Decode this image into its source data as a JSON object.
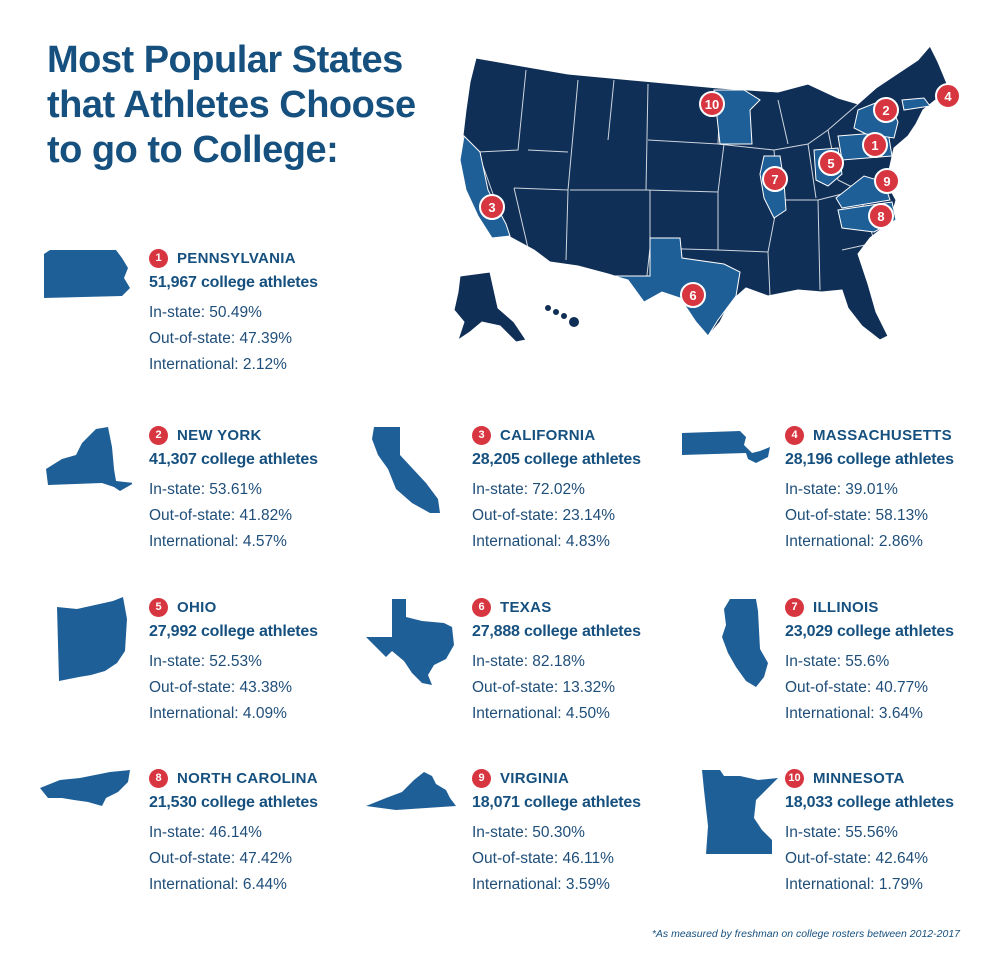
{
  "title": "Most Popular States that Athletes Choose to go to College:",
  "footnote": "*As measured by freshman on college rosters between 2012-2017",
  "colors": {
    "dark_navy": "#0f2f57",
    "highlight_blue": "#1f5f97",
    "accent_red": "#d7353f",
    "text_blue": "#16507f"
  },
  "map_pins": [
    "1",
    "2",
    "3",
    "4",
    "5",
    "6",
    "7",
    "8",
    "9",
    "10"
  ],
  "states": [
    {
      "rank": "1",
      "name": "PENNSYLVANIA",
      "total": "51,967 college athletes",
      "in_state": "In-state: 50.49%",
      "out_of_state": "Out-of-state: 47.39%",
      "international": "International: 2.12%",
      "icon": "pennsylvania-shape-icon"
    },
    {
      "rank": "2",
      "name": "NEW YORK",
      "total": "41,307 college athletes",
      "in_state": "In-state: 53.61%",
      "out_of_state": "Out-of-state: 41.82%",
      "international": "International: 4.57%",
      "icon": "new-york-shape-icon"
    },
    {
      "rank": "3",
      "name": "CALIFORNIA",
      "total": "28,205 college athletes",
      "in_state": "In-state: 72.02%",
      "out_of_state": "Out-of-state: 23.14%",
      "international": "International: 4.83%",
      "icon": "california-shape-icon"
    },
    {
      "rank": "4",
      "name": "MASSACHUSETTS",
      "total": "28,196 college athletes",
      "in_state": "In-state: 39.01%",
      "out_of_state": "Out-of-state: 58.13%",
      "international": "International: 2.86%",
      "icon": "massachusetts-shape-icon"
    },
    {
      "rank": "5",
      "name": "OHIO",
      "total": "27,992 college athletes",
      "in_state": "In-state: 52.53%",
      "out_of_state": "Out-of-state: 43.38%",
      "international": "International: 4.09%",
      "icon": "ohio-shape-icon"
    },
    {
      "rank": "6",
      "name": "TEXAS",
      "total": "27,888 college athletes",
      "in_state": "In-state: 82.18%",
      "out_of_state": "Out-of-state: 13.32%",
      "international": "International: 4.50%",
      "icon": "texas-shape-icon"
    },
    {
      "rank": "7",
      "name": "ILLINOIS",
      "total": "23,029 college athletes",
      "in_state": "In-state: 55.6%",
      "out_of_state": "Out-of-state: 40.77%",
      "international": "International: 3.64%",
      "icon": "illinois-shape-icon"
    },
    {
      "rank": "8",
      "name": "NORTH CAROLINA",
      "total": "21,530 college athletes",
      "in_state": "In-state: 46.14%",
      "out_of_state": "Out-of-state: 47.42%",
      "international": "International: 6.44%",
      "icon": "north-carolina-shape-icon"
    },
    {
      "rank": "9",
      "name": "VIRGINIA",
      "total": "18,071 college athletes",
      "in_state": "In-state: 50.30%",
      "out_of_state": "Out-of-state: 46.11%",
      "international": "International: 3.59%",
      "icon": "virginia-shape-icon"
    },
    {
      "rank": "10",
      "name": "MINNESOTA",
      "total": "18,033 college athletes",
      "in_state": "In-state: 55.56%",
      "out_of_state": "Out-of-state: 42.64%",
      "international": "International: 1.79%",
      "icon": "minnesota-shape-icon"
    }
  ]
}
